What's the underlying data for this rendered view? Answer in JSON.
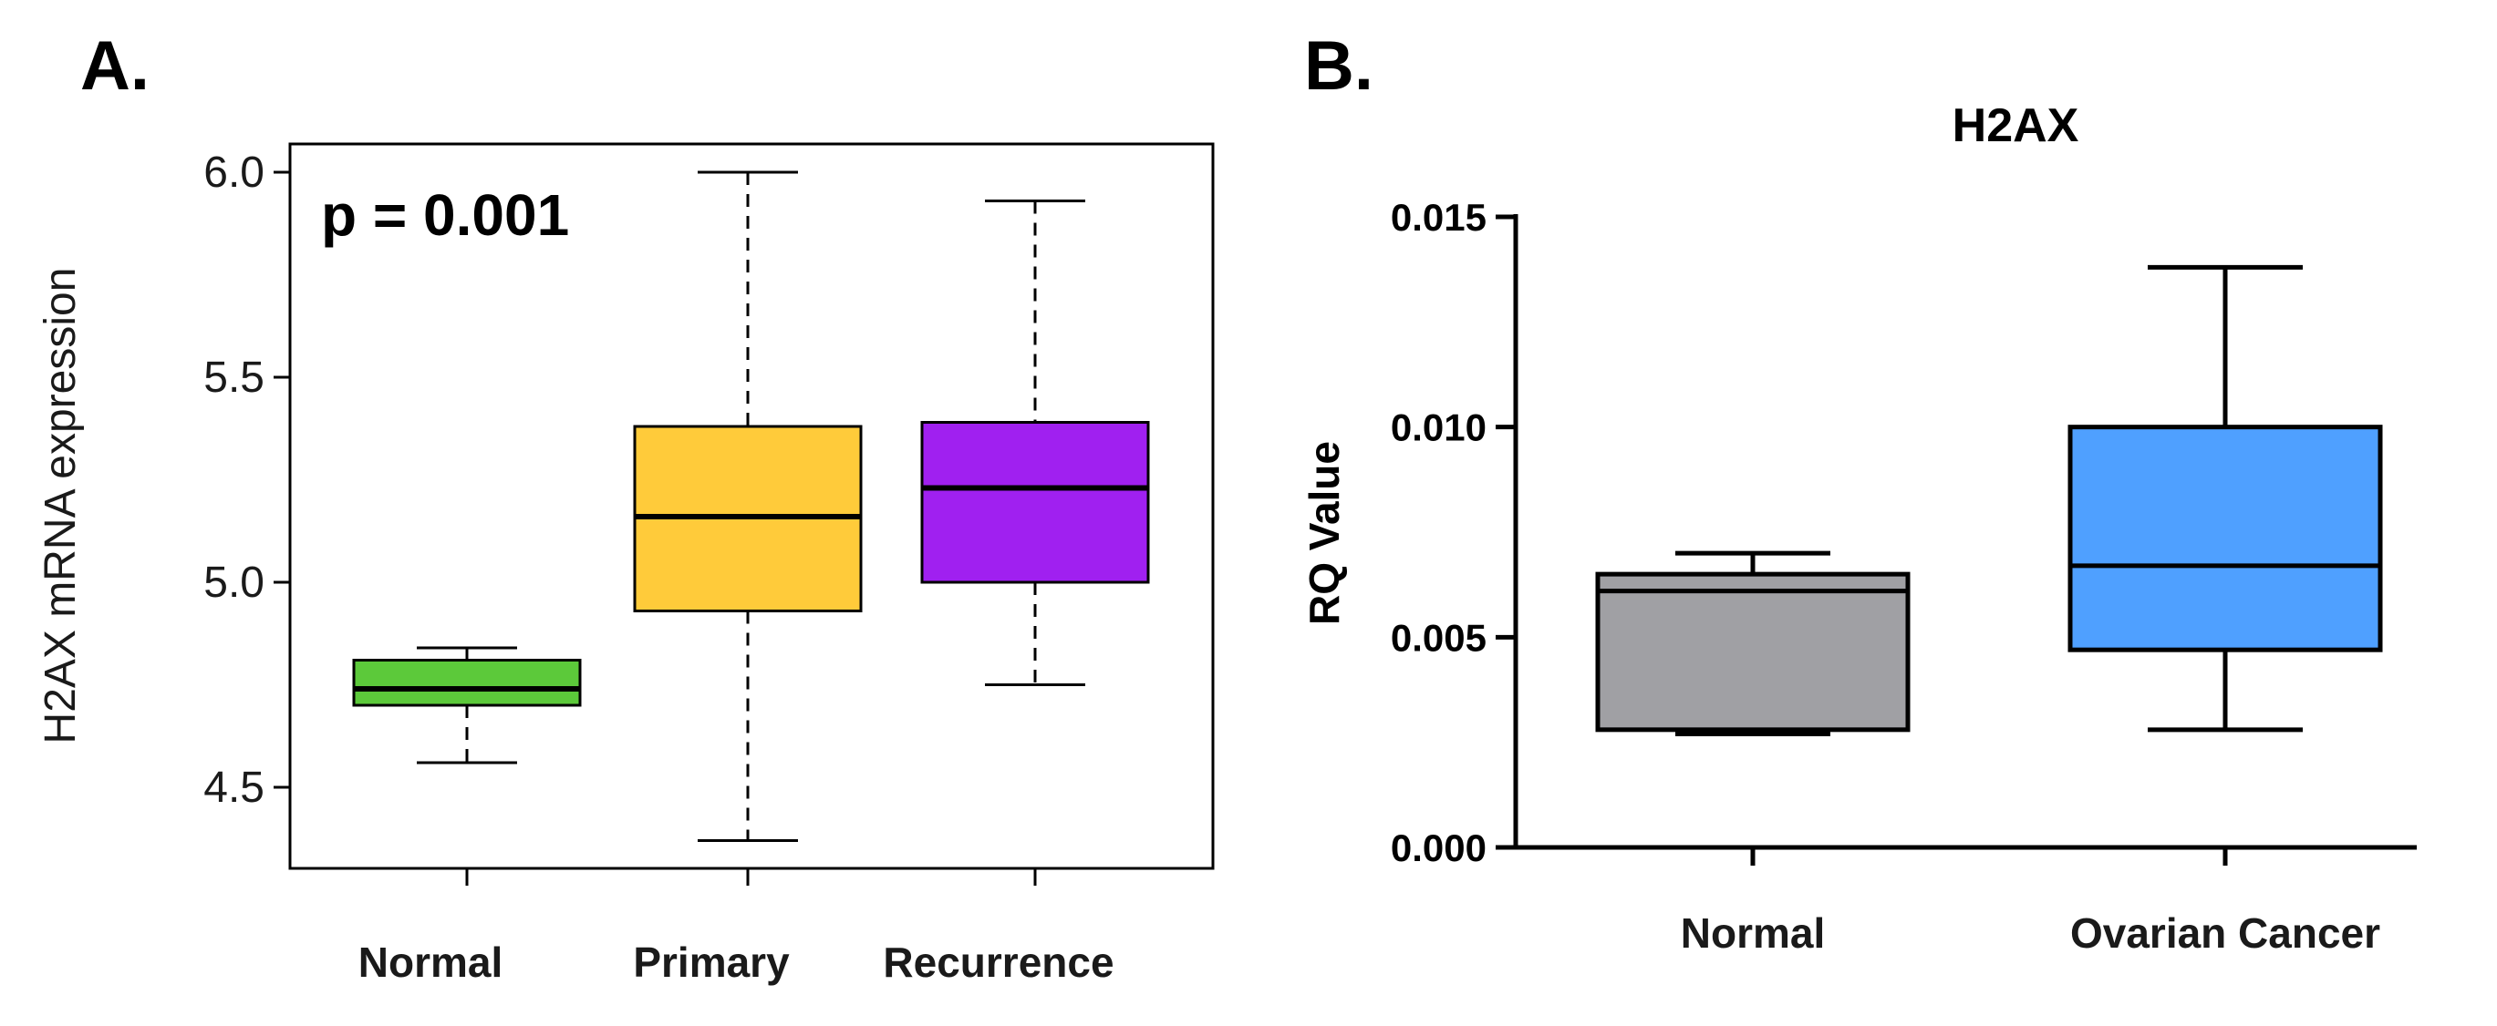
{
  "panels": {
    "a": {
      "letter": "A."
    },
    "b": {
      "letter": "B."
    }
  },
  "chart_data": [
    {
      "type": "box",
      "panel": "A.",
      "title": "",
      "xlabel": "",
      "ylabel": "H2AX mRNA expression",
      "ylim": [
        4.3,
        6.05
      ],
      "yticks": [
        4.5,
        5.0,
        5.5,
        6.0
      ],
      "ytick_labels": [
        "4.5",
        "5.0",
        "5.5",
        "6.0"
      ],
      "annotation": "p = 0.001",
      "whisker_style": "dashed",
      "frame": "full",
      "categories": [
        "Normal",
        "Primary",
        "Recurrence"
      ],
      "boxes": [
        {
          "label": "Normal",
          "whislo": 4.56,
          "q1": 4.7,
          "med": 4.74,
          "q3": 4.81,
          "whishi": 4.84,
          "color": "#5CC93A"
        },
        {
          "label": "Primary",
          "whislo": 4.37,
          "q1": 4.93,
          "med": 5.16,
          "q3": 5.38,
          "whishi": 6.0,
          "color": "#FFCB3A"
        },
        {
          "label": "Recurrence",
          "whislo": 4.75,
          "q1": 5.0,
          "med": 5.23,
          "q3": 5.39,
          "whishi": 5.93,
          "color": "#A020F0"
        }
      ]
    },
    {
      "type": "box",
      "panel": "B.",
      "title": "H2AX",
      "xlabel": "",
      "ylabel": "RQ Value",
      "ylim": [
        0.0,
        0.015
      ],
      "yticks": [
        0.0,
        0.005,
        0.01,
        0.015
      ],
      "ytick_labels": [
        "0.000",
        "0.005",
        "0.010",
        "0.015"
      ],
      "whisker_style": "solid",
      "frame": "axes",
      "categories": [
        "Normal",
        "Ovarian Cancer"
      ],
      "boxes": [
        {
          "label": "Normal",
          "whislo": 0.0027,
          "q1": 0.0028,
          "med": 0.0061,
          "q3": 0.0065,
          "whishi": 0.007,
          "color": "#A0A0A4"
        },
        {
          "label": "Ovarian Cancer",
          "whislo": 0.0028,
          "q1": 0.0047,
          "med": 0.0067,
          "q3": 0.01,
          "whishi": 0.0138,
          "color": "#4FA0FF"
        }
      ]
    }
  ]
}
